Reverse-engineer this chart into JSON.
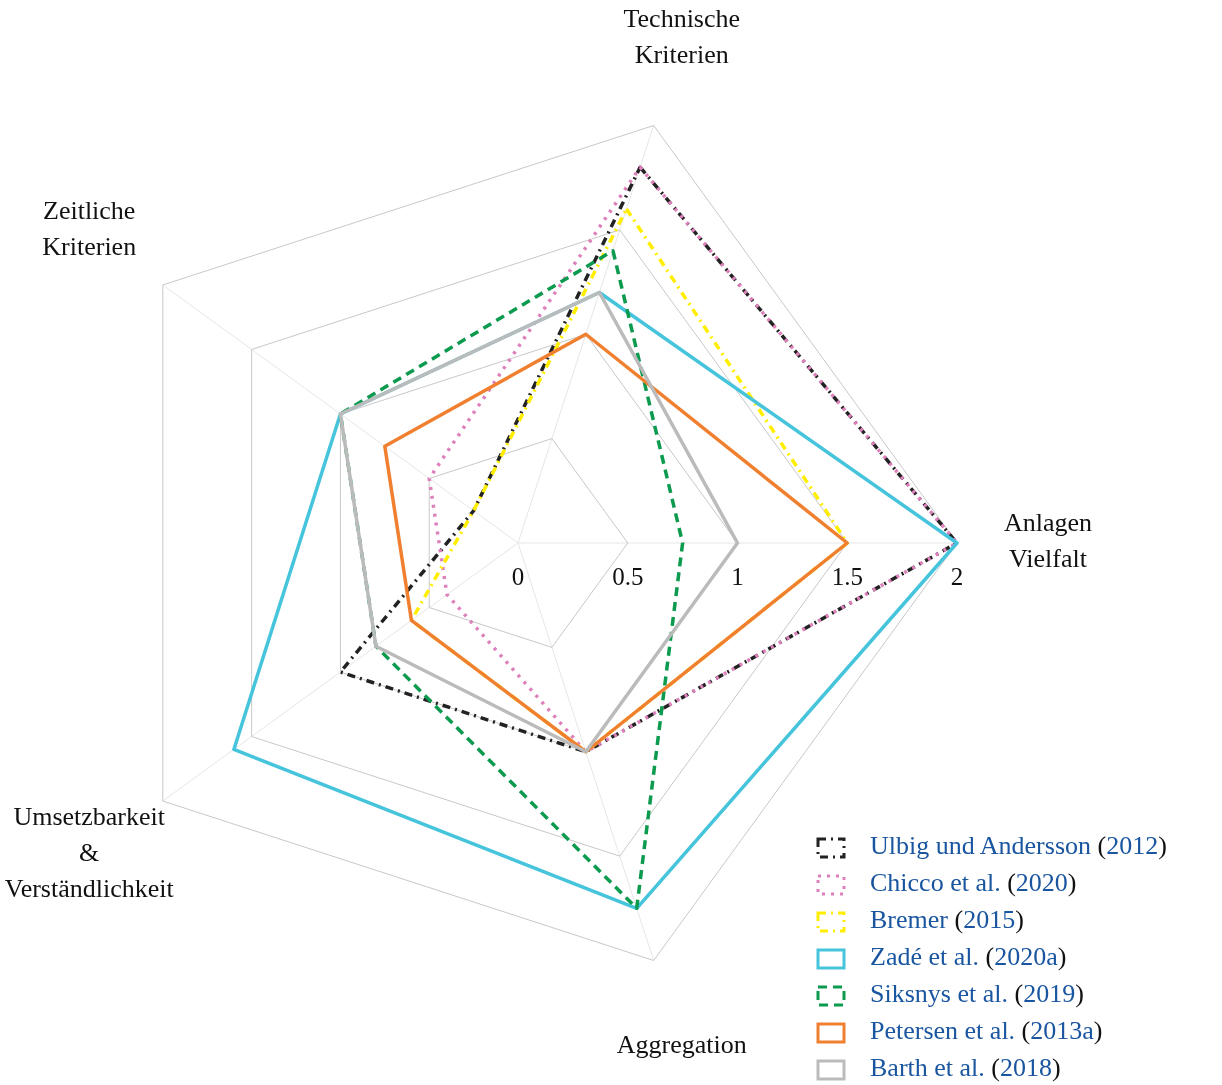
{
  "chart_data": {
    "type": "radar",
    "categories": [
      "Technische Kriterien",
      "Anlagen Vielfalt",
      "Aggregation",
      "Umsetzbarkeit & Verständlichkeit",
      "Zeitliche Kriterien"
    ],
    "ylim": [
      0,
      2
    ],
    "yticks": [
      0,
      0.5,
      1,
      1.5,
      2
    ],
    "grid": true,
    "legend": "bottom right",
    "series": [
      {
        "name": "Ulbig und Andersson (2012)",
        "color": "#222222",
        "line_style": "dashdot",
        "values": [
          1.8,
          2,
          1,
          1,
          0.25
        ]
      },
      {
        "name": "Chicco et al. (2020)",
        "color": "#dd80bb",
        "line_style": "dotted",
        "values": [
          1.8,
          2,
          1,
          0.4,
          0.5
        ]
      },
      {
        "name": "Bremer (2015)",
        "color": "#ffee00",
        "line_style": "dashdot",
        "values": [
          1.6,
          1.5,
          1,
          0.6,
          0.25
        ]
      },
      {
        "name": "Zadé et al. (2020a)",
        "color": "#45c4dc",
        "line_style": "solid",
        "values": [
          1.2,
          2,
          1.75,
          1.6,
          1
        ]
      },
      {
        "name": "Siksnys et al. (2019)",
        "color": "#0b9a4e",
        "line_style": "dashed",
        "values": [
          1.4,
          0.75,
          1.75,
          0.8,
          1
        ]
      },
      {
        "name": "Petersen et al. (2013a)",
        "color": "#f08030",
        "line_style": "solid",
        "values": [
          1,
          1.5,
          1,
          0.6,
          0.75
        ]
      },
      {
        "name": "Barth et al. (2018)",
        "color": "#bbbbbb",
        "line_style": "solid",
        "values": [
          1.2,
          1,
          1,
          0.8,
          1
        ]
      }
    ]
  }
}
